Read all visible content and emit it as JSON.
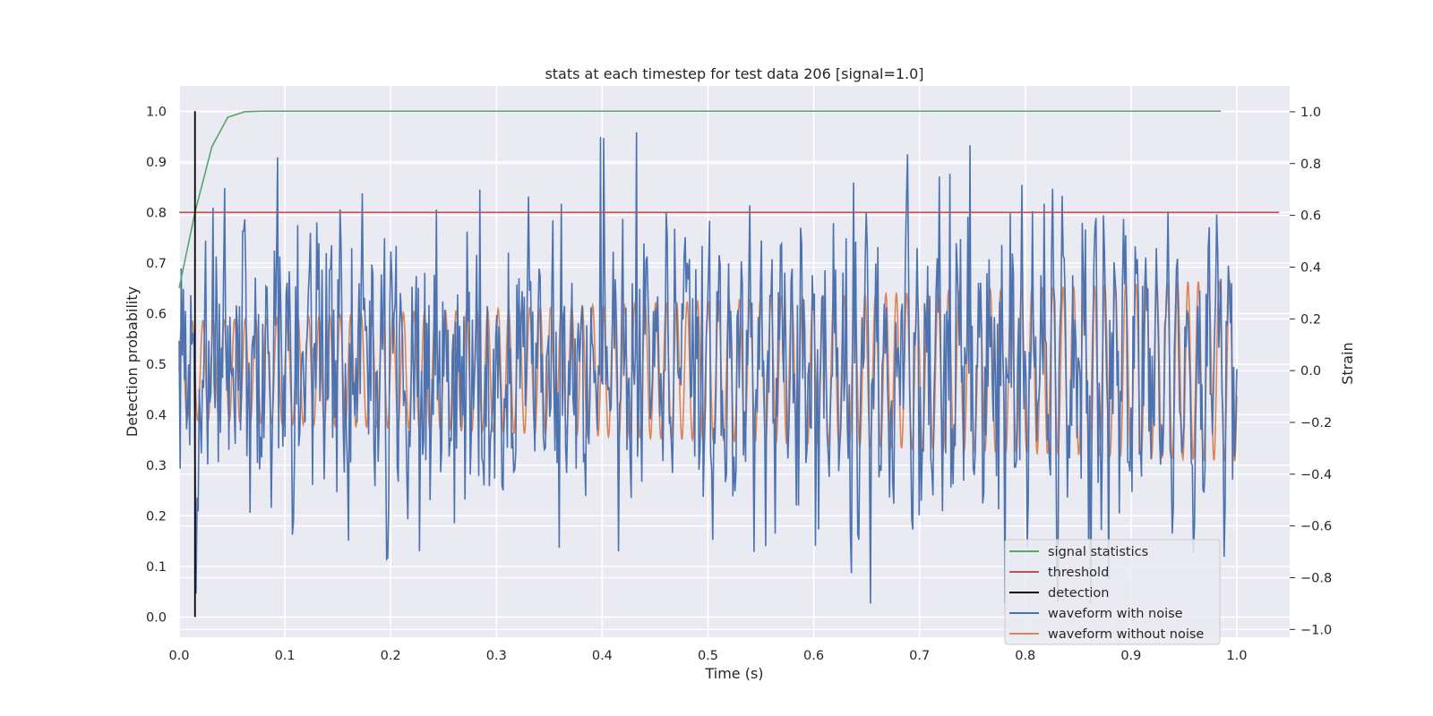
{
  "chart_data": {
    "type": "line",
    "title": "stats at each timestep for test data 206 [signal=1.0]",
    "xlabel": "Time (s)",
    "ylabel_left": "Detection probability",
    "ylabel_right": "Strain",
    "xlim": [
      0.0,
      1.05
    ],
    "ylim_left": [
      -0.04,
      1.05
    ],
    "ylim_right": [
      -1.03,
      1.1
    ],
    "x_ticks": [
      0.0,
      0.1,
      0.2,
      0.3,
      0.4,
      0.5,
      0.6,
      0.7,
      0.8,
      0.9,
      1.0
    ],
    "x_tick_labels": [
      "0.0",
      "0.1",
      "0.2",
      "0.3",
      "0.4",
      "0.5",
      "0.6",
      "0.7",
      "0.8",
      "0.9",
      "1.0"
    ],
    "y_left_ticks": [
      0.0,
      0.1,
      0.2,
      0.3,
      0.4,
      0.5,
      0.6,
      0.7,
      0.8,
      0.9,
      1.0
    ],
    "y_left_tick_labels": [
      "0.0",
      "0.1",
      "0.2",
      "0.3",
      "0.4",
      "0.5",
      "0.6",
      "0.7",
      "0.8",
      "0.9",
      "1.0"
    ],
    "y_right_ticks": [
      -1.0,
      -0.8,
      -0.6,
      -0.4,
      -0.2,
      0.0,
      0.2,
      0.4,
      0.6,
      0.8,
      1.0
    ],
    "y_right_tick_labels": [
      "−1.0",
      "−0.8",
      "−0.6",
      "−0.4",
      "−0.2",
      "0.0",
      "0.2",
      "0.4",
      "0.6",
      "0.8",
      "1.0"
    ],
    "grid": true,
    "legend_position": "bottom-right",
    "legend": [
      {
        "label": "signal statistics",
        "color": "#55a868"
      },
      {
        "label": "threshold",
        "color": "#c44e52"
      },
      {
        "label": "detection",
        "color": "#000000"
      },
      {
        "label": "waveform with noise",
        "color": "#4c72b0"
      },
      {
        "label": "waveform without noise",
        "color": "#dd8452"
      }
    ],
    "signal_statistics": {
      "axis": "left",
      "x": [
        0.0,
        0.015,
        0.031,
        0.046,
        0.062,
        0.078,
        0.2,
        0.5,
        0.8,
        0.985
      ],
      "y": [
        0.65,
        0.8,
        0.93,
        0.988,
        0.999,
        1.0,
        1.0,
        1.0,
        1.0,
        1.0
      ]
    },
    "threshold": {
      "axis": "left",
      "x": [
        0.0,
        1.04
      ],
      "y": [
        0.8,
        0.8
      ]
    },
    "detection": {
      "axis": "left",
      "x": 0.015,
      "y": [
        0.0,
        1.0
      ]
    },
    "waveform_with_noise": {
      "axis": "right",
      "x_range": [
        0.0,
        1.0
      ],
      "n_points": 1000,
      "approx_range": [
        -0.9,
        1.0
      ]
    },
    "waveform_without_noise": {
      "axis": "right",
      "x_range": [
        0.0,
        1.0
      ],
      "description_cycles": 100,
      "amplitude_start": 0.19,
      "amplitude_end": 0.35
    }
  }
}
